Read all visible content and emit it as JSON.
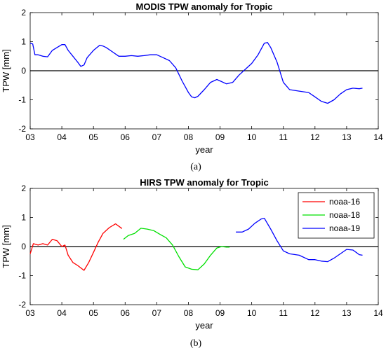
{
  "chart_data": [
    {
      "type": "line",
      "title": "MODIS TPW anomaly  for Tropic",
      "xlabel": "year",
      "ylabel": "TPW [mm]",
      "xlim": [
        3,
        14
      ],
      "ylim": [
        -2,
        2
      ],
      "xticks": [
        3,
        4,
        5,
        6,
        7,
        8,
        9,
        10,
        11,
        12,
        13,
        14
      ],
      "xtick_labels": [
        "03",
        "04",
        "05",
        "06",
        "07",
        "08",
        "09",
        "10",
        "11",
        "12",
        "13",
        "14"
      ],
      "yticks": [
        -2,
        -1,
        0,
        1,
        2
      ],
      "ytick_labels": [
        "-2",
        "-1",
        "0",
        "1",
        "2"
      ],
      "grid": false,
      "zero_line": true,
      "caption": "(a)",
      "series": [
        {
          "color": "#0000ff",
          "x": [
            3.0,
            3.08,
            3.15,
            3.25,
            3.4,
            3.55,
            3.7,
            3.85,
            4.0,
            4.1,
            4.2,
            4.35,
            4.5,
            4.6,
            4.7,
            4.8,
            5.0,
            5.2,
            5.3,
            5.4,
            5.6,
            5.8,
            6.0,
            6.2,
            6.4,
            6.6,
            6.8,
            7.0,
            7.2,
            7.4,
            7.6,
            7.8,
            8.0,
            8.1,
            8.2,
            8.3,
            8.5,
            8.7,
            8.9,
            9.0,
            9.2,
            9.4,
            9.6,
            9.8,
            10.0,
            10.2,
            10.4,
            10.5,
            10.6,
            10.8,
            11.0,
            11.2,
            11.5,
            11.8,
            12.0,
            12.2,
            12.4,
            12.6,
            12.8,
            13.0,
            13.2,
            13.4,
            13.5
          ],
          "y": [
            0.95,
            0.92,
            0.55,
            0.55,
            0.5,
            0.48,
            0.7,
            0.8,
            0.9,
            0.9,
            0.7,
            0.5,
            0.3,
            0.15,
            0.2,
            0.45,
            0.7,
            0.88,
            0.85,
            0.8,
            0.65,
            0.5,
            0.5,
            0.52,
            0.5,
            0.52,
            0.55,
            0.55,
            0.45,
            0.35,
            0.1,
            -0.35,
            -0.75,
            -0.9,
            -0.93,
            -0.88,
            -0.65,
            -0.4,
            -0.3,
            -0.35,
            -0.45,
            -0.4,
            -0.15,
            0.05,
            0.25,
            0.55,
            0.95,
            0.97,
            0.8,
            0.3,
            -0.4,
            -0.65,
            -0.7,
            -0.75,
            -0.9,
            -1.05,
            -1.12,
            -1.0,
            -0.8,
            -0.65,
            -0.6,
            -0.62,
            -0.6
          ]
        }
      ]
    },
    {
      "type": "line",
      "title": "HIRS TPW anomaly for Tropic",
      "xlabel": "year",
      "ylabel": "TPW [mm]",
      "xlim": [
        3,
        14
      ],
      "ylim": [
        -2,
        2
      ],
      "xticks": [
        3,
        4,
        5,
        6,
        7,
        8,
        9,
        10,
        11,
        12,
        13,
        14
      ],
      "xtick_labels": [
        "03",
        "04",
        "05",
        "06",
        "07",
        "08",
        "09",
        "10",
        "11",
        "12",
        "13",
        "14"
      ],
      "yticks": [
        -2,
        -1,
        0,
        1,
        2
      ],
      "ytick_labels": [
        "-2",
        "-1",
        "0",
        "1",
        "2"
      ],
      "grid": false,
      "zero_line": true,
      "legend": "top-right",
      "caption": "(b)",
      "series": [
        {
          "name": "noaa-16",
          "color": "#ff0000",
          "x": [
            3.0,
            3.1,
            3.25,
            3.4,
            3.55,
            3.7,
            3.85,
            4.0,
            4.1,
            4.2,
            4.35,
            4.5,
            4.7,
            4.85,
            5.0,
            5.15,
            5.3,
            5.5,
            5.7,
            5.9
          ],
          "y": [
            -0.25,
            0.1,
            0.05,
            0.1,
            0.05,
            0.25,
            0.2,
            0.0,
            0.05,
            -0.3,
            -0.55,
            -0.65,
            -0.82,
            -0.55,
            -0.2,
            0.15,
            0.45,
            0.65,
            0.78,
            0.62
          ]
        },
        {
          "name": "noaa-18",
          "color": "#00e000",
          "x": [
            5.95,
            6.1,
            6.3,
            6.5,
            6.7,
            6.9,
            7.1,
            7.3,
            7.5,
            7.7,
            7.9,
            8.1,
            8.3,
            8.5,
            8.7,
            8.9,
            9.05,
            9.2,
            9.3
          ],
          "y": [
            0.25,
            0.38,
            0.45,
            0.63,
            0.6,
            0.55,
            0.42,
            0.3,
            0.05,
            -0.35,
            -0.7,
            -0.78,
            -0.8,
            -0.6,
            -0.3,
            -0.05,
            0.0,
            -0.02,
            -0.02
          ]
        },
        {
          "name": "noaa-19",
          "color": "#0000ff",
          "x": [
            9.5,
            9.7,
            9.9,
            10.1,
            10.3,
            10.4,
            10.6,
            10.8,
            11.0,
            11.2,
            11.5,
            11.8,
            12.0,
            12.2,
            12.4,
            12.6,
            12.8,
            13.0,
            13.2,
            13.4,
            13.5
          ],
          "y": [
            0.5,
            0.5,
            0.6,
            0.8,
            0.95,
            0.97,
            0.6,
            0.2,
            -0.15,
            -0.25,
            -0.3,
            -0.45,
            -0.45,
            -0.5,
            -0.52,
            -0.4,
            -0.25,
            -0.1,
            -0.12,
            -0.28,
            -0.3
          ]
        }
      ]
    }
  ]
}
